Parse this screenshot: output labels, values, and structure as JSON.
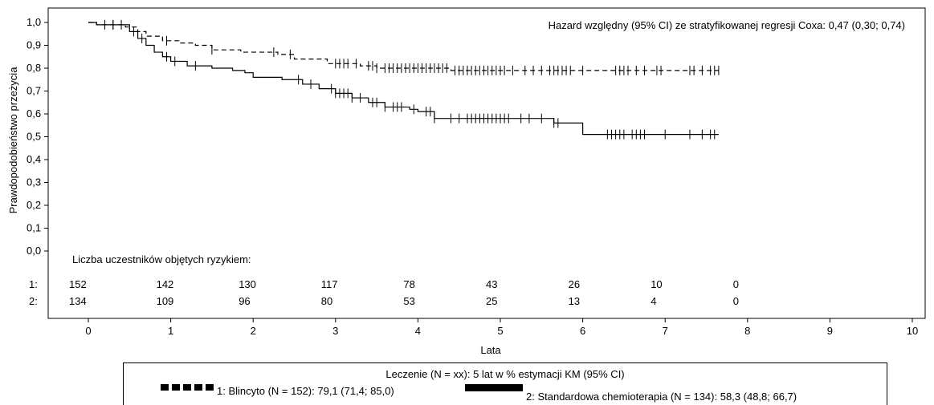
{
  "chart_data": {
    "type": "line",
    "subtype": "kaplan-meier",
    "ylabel": "Prawdopodobieństwo przeżycia",
    "xlabel": "Lata",
    "xlim": [
      0,
      10
    ],
    "ylim": [
      0,
      1
    ],
    "x_ticks": [
      "0",
      "1",
      "2",
      "3",
      "4",
      "5",
      "6",
      "7",
      "8",
      "9",
      "10"
    ],
    "y_ticks": [
      "0,0",
      "0,1",
      "0,2",
      "0,3",
      "0,4",
      "0,5",
      "0,6",
      "0,7",
      "0,8",
      "0,9",
      "1,0"
    ],
    "annotation": "Hazard względny (95% CI) ze stratyfikowanej regresji Coxa: 0,47 (0,30; 0,74)",
    "series": [
      {
        "name": "1: Blincyto (N = 152): 79,1 (71,4; 85,0)",
        "style": "dashed",
        "steps": [
          [
            0,
            1.0
          ],
          [
            0.05,
            1.0
          ],
          [
            0.1,
            0.99
          ],
          [
            0.35,
            0.99
          ],
          [
            0.45,
            0.98
          ],
          [
            0.6,
            0.96
          ],
          [
            0.7,
            0.94
          ],
          [
            0.9,
            0.92
          ],
          [
            1.1,
            0.91
          ],
          [
            1.3,
            0.9
          ],
          [
            1.5,
            0.88
          ],
          [
            1.85,
            0.87
          ],
          [
            2.3,
            0.86
          ],
          [
            2.5,
            0.84
          ],
          [
            2.9,
            0.82
          ],
          [
            3.3,
            0.81
          ],
          [
            3.5,
            0.8
          ],
          [
            4.4,
            0.79
          ],
          [
            7.65,
            0.79
          ]
        ],
        "censor_times": [
          0.2,
          0.3,
          0.4,
          0.95,
          1.5,
          2.25,
          2.45,
          3.0,
          3.05,
          3.1,
          3.15,
          3.25,
          3.4,
          3.45,
          3.5,
          3.6,
          3.65,
          3.7,
          3.75,
          3.8,
          3.85,
          3.9,
          3.95,
          4.0,
          4.05,
          4.1,
          4.15,
          4.2,
          4.25,
          4.3,
          4.35,
          4.45,
          4.5,
          4.55,
          4.6,
          4.65,
          4.7,
          4.75,
          4.8,
          4.85,
          4.9,
          4.95,
          5.0,
          5.05,
          5.15,
          5.3,
          5.4,
          5.5,
          5.6,
          5.65,
          5.7,
          5.75,
          5.8,
          5.85,
          6.0,
          6.4,
          6.45,
          6.5,
          6.55,
          6.65,
          6.75,
          6.9,
          6.95,
          7.3,
          7.35,
          7.45,
          7.55,
          7.6,
          7.65
        ]
      },
      {
        "name": "2: Standardowa chemioterapia (N = 134): 58,3 (48,8; 66,7)",
        "style": "solid",
        "steps": [
          [
            0,
            1.0
          ],
          [
            0.1,
            0.99
          ],
          [
            0.35,
            0.99
          ],
          [
            0.5,
            0.96
          ],
          [
            0.6,
            0.93
          ],
          [
            0.7,
            0.9
          ],
          [
            0.8,
            0.87
          ],
          [
            0.9,
            0.85
          ],
          [
            1.0,
            0.83
          ],
          [
            1.2,
            0.81
          ],
          [
            1.5,
            0.8
          ],
          [
            1.75,
            0.79
          ],
          [
            1.9,
            0.78
          ],
          [
            2.0,
            0.76
          ],
          [
            2.35,
            0.75
          ],
          [
            2.6,
            0.73
          ],
          [
            2.8,
            0.71
          ],
          [
            3.0,
            0.69
          ],
          [
            3.2,
            0.67
          ],
          [
            3.4,
            0.65
          ],
          [
            3.6,
            0.63
          ],
          [
            3.9,
            0.62
          ],
          [
            4.0,
            0.61
          ],
          [
            4.2,
            0.58
          ],
          [
            5.0,
            0.58
          ],
          [
            5.6,
            0.58
          ],
          [
            5.65,
            0.56
          ],
          [
            6.0,
            0.55
          ],
          [
            6.0,
            0.51
          ],
          [
            7.65,
            0.51
          ]
        ],
        "censor_times": [
          0.3,
          0.55,
          0.65,
          0.95,
          1.05,
          1.3,
          2.55,
          2.7,
          2.95,
          3.0,
          3.05,
          3.1,
          3.15,
          3.2,
          3.3,
          3.45,
          3.5,
          3.6,
          3.7,
          3.75,
          3.8,
          3.95,
          4.1,
          4.15,
          4.2,
          4.4,
          4.5,
          4.6,
          4.65,
          4.7,
          4.75,
          4.8,
          4.85,
          4.9,
          4.95,
          5.0,
          5.05,
          5.1,
          5.25,
          5.35,
          5.5,
          5.65,
          5.7,
          6.3,
          6.35,
          6.4,
          6.45,
          6.5,
          6.6,
          6.65,
          6.7,
          6.75,
          7.0,
          7.3,
          7.45,
          7.55,
          7.6
        ]
      }
    ],
    "risk_table": {
      "title": "Liczba uczestników objętych ryzykiem:",
      "times": [
        0,
        1,
        2,
        3,
        4,
        5,
        6,
        7,
        8
      ],
      "rows": [
        {
          "label": "1:",
          "values": [
            "152",
            "142",
            "130",
            "117",
            "78",
            "43",
            "26",
            "10",
            "0"
          ]
        },
        {
          "label": "2:",
          "values": [
            "134",
            "109",
            "96",
            "80",
            "53",
            "25",
            "13",
            "4",
            "0"
          ]
        }
      ]
    }
  },
  "legend": {
    "title": "Leczenie (N = xx): 5 lat w % estymacji KM (95% CI)",
    "items": [
      {
        "label": "1: Blincyto (N = 152): 79,1 (71,4; 85,0)"
      },
      {
        "label": "2: Standardowa chemioterapia (N = 134): 58,3 (48,8; 66,7)"
      }
    ]
  }
}
